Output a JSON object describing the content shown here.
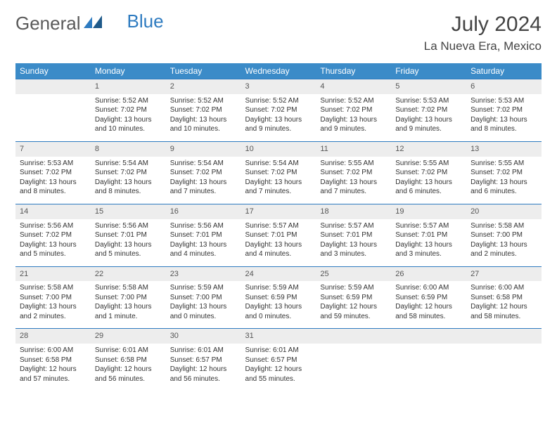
{
  "logo": {
    "part1": "General",
    "part2": "Blue"
  },
  "title": "July 2024",
  "location": "La Nueva Era, Mexico",
  "colors": {
    "header_bg": "#3b8bc8",
    "header_text": "#ffffff",
    "daynum_bg": "#ededed",
    "border": "#2e7bc0",
    "text": "#333333",
    "logo_gray": "#5a5a5a",
    "logo_blue": "#2e7bc0"
  },
  "days_of_week": [
    "Sunday",
    "Monday",
    "Tuesday",
    "Wednesday",
    "Thursday",
    "Friday",
    "Saturday"
  ],
  "weeks": [
    [
      null,
      {
        "n": "1",
        "sr": "Sunrise: 5:52 AM",
        "ss": "Sunset: 7:02 PM",
        "d1": "Daylight: 13 hours",
        "d2": "and 10 minutes."
      },
      {
        "n": "2",
        "sr": "Sunrise: 5:52 AM",
        "ss": "Sunset: 7:02 PM",
        "d1": "Daylight: 13 hours",
        "d2": "and 10 minutes."
      },
      {
        "n": "3",
        "sr": "Sunrise: 5:52 AM",
        "ss": "Sunset: 7:02 PM",
        "d1": "Daylight: 13 hours",
        "d2": "and 9 minutes."
      },
      {
        "n": "4",
        "sr": "Sunrise: 5:52 AM",
        "ss": "Sunset: 7:02 PM",
        "d1": "Daylight: 13 hours",
        "d2": "and 9 minutes."
      },
      {
        "n": "5",
        "sr": "Sunrise: 5:53 AM",
        "ss": "Sunset: 7:02 PM",
        "d1": "Daylight: 13 hours",
        "d2": "and 9 minutes."
      },
      {
        "n": "6",
        "sr": "Sunrise: 5:53 AM",
        "ss": "Sunset: 7:02 PM",
        "d1": "Daylight: 13 hours",
        "d2": "and 8 minutes."
      }
    ],
    [
      {
        "n": "7",
        "sr": "Sunrise: 5:53 AM",
        "ss": "Sunset: 7:02 PM",
        "d1": "Daylight: 13 hours",
        "d2": "and 8 minutes."
      },
      {
        "n": "8",
        "sr": "Sunrise: 5:54 AM",
        "ss": "Sunset: 7:02 PM",
        "d1": "Daylight: 13 hours",
        "d2": "and 8 minutes."
      },
      {
        "n": "9",
        "sr": "Sunrise: 5:54 AM",
        "ss": "Sunset: 7:02 PM",
        "d1": "Daylight: 13 hours",
        "d2": "and 7 minutes."
      },
      {
        "n": "10",
        "sr": "Sunrise: 5:54 AM",
        "ss": "Sunset: 7:02 PM",
        "d1": "Daylight: 13 hours",
        "d2": "and 7 minutes."
      },
      {
        "n": "11",
        "sr": "Sunrise: 5:55 AM",
        "ss": "Sunset: 7:02 PM",
        "d1": "Daylight: 13 hours",
        "d2": "and 7 minutes."
      },
      {
        "n": "12",
        "sr": "Sunrise: 5:55 AM",
        "ss": "Sunset: 7:02 PM",
        "d1": "Daylight: 13 hours",
        "d2": "and 6 minutes."
      },
      {
        "n": "13",
        "sr": "Sunrise: 5:55 AM",
        "ss": "Sunset: 7:02 PM",
        "d1": "Daylight: 13 hours",
        "d2": "and 6 minutes."
      }
    ],
    [
      {
        "n": "14",
        "sr": "Sunrise: 5:56 AM",
        "ss": "Sunset: 7:02 PM",
        "d1": "Daylight: 13 hours",
        "d2": "and 5 minutes."
      },
      {
        "n": "15",
        "sr": "Sunrise: 5:56 AM",
        "ss": "Sunset: 7:01 PM",
        "d1": "Daylight: 13 hours",
        "d2": "and 5 minutes."
      },
      {
        "n": "16",
        "sr": "Sunrise: 5:56 AM",
        "ss": "Sunset: 7:01 PM",
        "d1": "Daylight: 13 hours",
        "d2": "and 4 minutes."
      },
      {
        "n": "17",
        "sr": "Sunrise: 5:57 AM",
        "ss": "Sunset: 7:01 PM",
        "d1": "Daylight: 13 hours",
        "d2": "and 4 minutes."
      },
      {
        "n": "18",
        "sr": "Sunrise: 5:57 AM",
        "ss": "Sunset: 7:01 PM",
        "d1": "Daylight: 13 hours",
        "d2": "and 3 minutes."
      },
      {
        "n": "19",
        "sr": "Sunrise: 5:57 AM",
        "ss": "Sunset: 7:01 PM",
        "d1": "Daylight: 13 hours",
        "d2": "and 3 minutes."
      },
      {
        "n": "20",
        "sr": "Sunrise: 5:58 AM",
        "ss": "Sunset: 7:00 PM",
        "d1": "Daylight: 13 hours",
        "d2": "and 2 minutes."
      }
    ],
    [
      {
        "n": "21",
        "sr": "Sunrise: 5:58 AM",
        "ss": "Sunset: 7:00 PM",
        "d1": "Daylight: 13 hours",
        "d2": "and 2 minutes."
      },
      {
        "n": "22",
        "sr": "Sunrise: 5:58 AM",
        "ss": "Sunset: 7:00 PM",
        "d1": "Daylight: 13 hours",
        "d2": "and 1 minute."
      },
      {
        "n": "23",
        "sr": "Sunrise: 5:59 AM",
        "ss": "Sunset: 7:00 PM",
        "d1": "Daylight: 13 hours",
        "d2": "and 0 minutes."
      },
      {
        "n": "24",
        "sr": "Sunrise: 5:59 AM",
        "ss": "Sunset: 6:59 PM",
        "d1": "Daylight: 13 hours",
        "d2": "and 0 minutes."
      },
      {
        "n": "25",
        "sr": "Sunrise: 5:59 AM",
        "ss": "Sunset: 6:59 PM",
        "d1": "Daylight: 12 hours",
        "d2": "and 59 minutes."
      },
      {
        "n": "26",
        "sr": "Sunrise: 6:00 AM",
        "ss": "Sunset: 6:59 PM",
        "d1": "Daylight: 12 hours",
        "d2": "and 58 minutes."
      },
      {
        "n": "27",
        "sr": "Sunrise: 6:00 AM",
        "ss": "Sunset: 6:58 PM",
        "d1": "Daylight: 12 hours",
        "d2": "and 58 minutes."
      }
    ],
    [
      {
        "n": "28",
        "sr": "Sunrise: 6:00 AM",
        "ss": "Sunset: 6:58 PM",
        "d1": "Daylight: 12 hours",
        "d2": "and 57 minutes."
      },
      {
        "n": "29",
        "sr": "Sunrise: 6:01 AM",
        "ss": "Sunset: 6:58 PM",
        "d1": "Daylight: 12 hours",
        "d2": "and 56 minutes."
      },
      {
        "n": "30",
        "sr": "Sunrise: 6:01 AM",
        "ss": "Sunset: 6:57 PM",
        "d1": "Daylight: 12 hours",
        "d2": "and 56 minutes."
      },
      {
        "n": "31",
        "sr": "Sunrise: 6:01 AM",
        "ss": "Sunset: 6:57 PM",
        "d1": "Daylight: 12 hours",
        "d2": "and 55 minutes."
      },
      null,
      null,
      null
    ]
  ]
}
